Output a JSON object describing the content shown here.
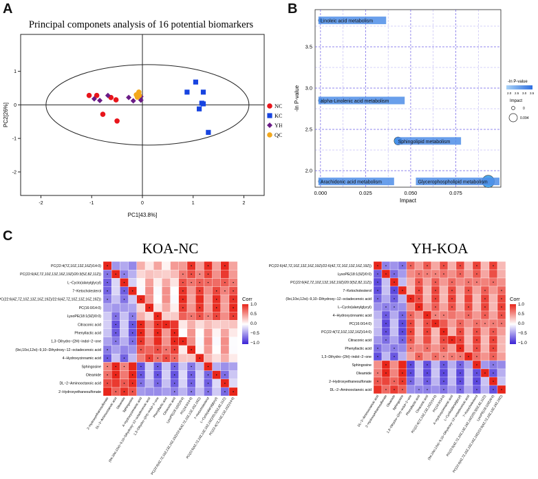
{
  "panels": {
    "a": "A",
    "b": "B",
    "c": "C"
  },
  "colors": {
    "nc": "#e8151b",
    "koa": "#1744e0",
    "yh": "#6a1b86",
    "qc": "#f3a81c",
    "pathway_box": "#4f8ee8",
    "grid": "#6b5ce6",
    "heat_pos": "#e8261b",
    "heat_neg": "#3a22d6"
  },
  "pca": {
    "title": "Principal componets analysis of 16 potential biomarkers",
    "xlabel": "PC1[43.8%]",
    "ylabel": "PC2[26%]",
    "legend": [
      {
        "key": "nc",
        "label": "NC",
        "shape": "circle"
      },
      {
        "key": "koa",
        "label": "KOA",
        "shape": "square"
      },
      {
        "key": "yh",
        "label": "YH",
        "shape": "diamond"
      },
      {
        "key": "qc",
        "label": "QC",
        "shape": "circle"
      }
    ]
  },
  "chart_data": [
    {
      "type": "scatter",
      "title": "Principal componets analysis of 16 potential biomarkers",
      "xlabel": "PC1[43.8%]",
      "ylabel": "PC2[26%]",
      "xlim": [
        -2.4,
        2.4
      ],
      "ylim": [
        -2.7,
        2.1
      ],
      "xticks": [
        -2,
        -1,
        0,
        1,
        2
      ],
      "yticks": [
        -2,
        -1,
        0,
        1
      ],
      "series": [
        {
          "name": "NC",
          "points": [
            [
              -1.05,
              0.28
            ],
            [
              -0.9,
              0.28
            ],
            [
              -0.78,
              -0.28
            ],
            [
              -0.62,
              0.22
            ],
            [
              -0.52,
              0.15
            ],
            [
              -0.5,
              -0.48
            ]
          ]
        },
        {
          "name": "KOA",
          "points": [
            [
              0.88,
              0.38
            ],
            [
              1.05,
              0.68
            ],
            [
              1.12,
              -0.12
            ],
            [
              1.17,
              0.05
            ],
            [
              1.2,
              0.38
            ],
            [
              1.2,
              0.03
            ],
            [
              1.3,
              -0.82
            ]
          ]
        },
        {
          "name": "YH",
          "points": [
            [
              -0.95,
              0.18
            ],
            [
              -0.84,
              0.13
            ],
            [
              -0.68,
              0.28
            ],
            [
              -0.27,
              0.22
            ],
            [
              -0.18,
              0.12
            ],
            [
              -0.03,
              0.25
            ],
            [
              -0.03,
              0.14
            ]
          ]
        },
        {
          "name": "QC",
          "points": [
            [
              -0.12,
              0.3
            ],
            [
              -0.1,
              0.23
            ],
            [
              -0.07,
              0.38
            ],
            [
              -0.06,
              0.28
            ]
          ]
        }
      ]
    },
    {
      "type": "scatter",
      "title": "Pathway analysis",
      "xlabel": "Impact",
      "ylabel": "-ln P-value",
      "xlim": [
        -0.003,
        0.1
      ],
      "ylim": [
        1.8,
        3.95
      ],
      "xticks": [
        0.0,
        0.025,
        0.05,
        0.075
      ],
      "xtick_labels": [
        "0.000",
        "0.025",
        "0.050",
        "0.075"
      ],
      "yticks": [
        2.0,
        2.5,
        3.0,
        3.5
      ],
      "ytick_labels": [
        "2.0",
        "2.5",
        "3.0",
        "3.5"
      ],
      "points": [
        {
          "label": "Linoleic acid metabolism",
          "impact": 0.0,
          "neglogp": 3.82
        },
        {
          "label": "alpha-Linolenic acid metabolism",
          "impact": 0.0,
          "neglogp": 2.85
        },
        {
          "label": "Sphingolipid metabolism",
          "impact": 0.043,
          "neglogp": 2.36
        },
        {
          "label": "Arachidonic acid metabolism",
          "impact": 0.0,
          "neglogp": 1.87
        },
        {
          "label": "Glycerophospholipid metabolism",
          "impact": 0.093,
          "neglogp": 1.87
        }
      ],
      "legend_color_title": "-ln P-value",
      "legend_color_ticks": [
        "2.0",
        "2.5",
        "3.0",
        "3.5"
      ],
      "legend_size_title": "Impact",
      "legend_size_labels": [
        "0",
        "0.094"
      ]
    },
    {
      "type": "heatmap",
      "title": "KOA-NC",
      "legend_title": "Corr",
      "legend_ticks": [
        "1.0",
        "0.5",
        "0.0",
        "−0.5",
        "−1.0"
      ],
      "rows": [
        "PC(22:4(7Z,10Z,13Z,16Z)/14:0)",
        "PC(22:6(4Z,7Z,10Z,13Z,16Z,19Z)/20:3(5Z,8Z,11Z))",
        "L−Cyclo(alanylglycyl)",
        "7−Ketocholesterol",
        "PC(22:6(4Z,7Z,10Z,13Z,16Z,19Z)/22:6(4Z,7Z,10Z,13Z,16Z,19Z))",
        "PC(16:0/14:0)",
        "LysoPE(18:1(9Z)/0:0)",
        "Citraconic acid",
        "Phenyllactic acid",
        "1,3−Dihydro−(2H)−indol−2−one",
        "(9xi,10xi,12xi)−9,10−Dihydroxy−12−octadecenoic acid",
        "4−Hydroxycinnamic acid",
        "Sphingosine",
        "Oleamide",
        "DL−2−Aminooctanoic acid",
        "2−Hydroxyethanesulfonate"
      ],
      "columns": [
        "2−Hydroxyethanesulfonate",
        "DL−2−Aminooctanoic acid",
        "Oleamide",
        "Sphingosine",
        "4−Hydroxycinnamic acid",
        "(9xi,10xi,12xi)−9,10−Dihydroxy−12−octadecenoic acid",
        "1,3−Dihydro−(2H)−indol−2−one",
        "Phenyllactic acid",
        "Citraconic acid",
        "LysoPE(18:1(9Z)/0:0)",
        "PC(16:0/14:0)",
        "PC(22:6(4Z,7Z,10Z,13Z,16Z,19Z)/22:6(4Z,7Z,10Z,13Z,16Z,19Z))",
        "7−Ketocholesterol",
        "L−Cyclo(alanylglycyl)",
        "PC(22:6(4Z,7Z,10Z,13Z,16Z,19Z)/20:3(5Z,8Z,11Z))",
        "PC(22:4(7Z,10Z,13Z,16Z)/14:0)"
      ],
      "groups": [
        0,
        0,
        0,
        0,
        1,
        1,
        1,
        1,
        1,
        2,
        2,
        2,
        2,
        2,
        2,
        2
      ],
      "group_corr": [
        [
          0.85,
          -0.5,
          -0.45
        ],
        [
          -0.5,
          0.75,
          0.25
        ],
        [
          -0.45,
          0.25,
          0.7
        ]
      ],
      "note": "correlation values estimated from cell colors; '*' marks significant cells"
    },
    {
      "type": "heatmap",
      "title": "YH-KOA",
      "legend_title": "Corr",
      "legend_ticks": [
        "1.0",
        "0.5",
        "0.0",
        "−0.5",
        "−1.0"
      ],
      "rows": [
        "PC(22:6(4Z,7Z,10Z,13Z,16Z,19Z)/22:6(4Z,7Z,10Z,13Z,16Z,19Z))",
        "LysoPE(18:1(9Z)/0:0)",
        "PC(22:6(4Z,7Z,10Z,13Z,16Z,19Z)/20:3(5Z,8Z,11Z))",
        "7−Ketocholesterol",
        "(9xi,10xi,12xi)−9,10−Dihydroxy−12−octadecenoic acid",
        "L−Cyclo(alanylglycyl)",
        "4−Hydroxycinnamic acid",
        "PC(16:0/14:0)",
        "PC(22:4(7Z,10Z,13Z,16Z)/14:0)",
        "Citraconic acid",
        "Phenyllactic acid",
        "1,3−Dihydro−(2H)−indol−2−one",
        "Sphingosine",
        "Oleamide",
        "2−Hydroxyethanesulfonate",
        "DL−2−Aminooctanoic acid"
      ],
      "columns": [
        "DL−2−Aminooctanoic acid",
        "2−Hydroxyethanesulfonate",
        "Oleamide",
        "Sphingosine",
        "1,3−Dihydro−(2H)−indol−2−one",
        "Phenyllactic acid",
        "Citraconic acid",
        "PC(22:4(7Z,10Z,13Z,16Z)/14:0)",
        "PC(16:0/14:0)",
        "4−Hydroxycinnamic acid",
        "L−Cyclo(alanylglycyl)",
        "(9xi,10xi,12xi)−9,10−Dihydroxy−12−octadecenoic acid",
        "7−Ketocholesterol",
        "PC(22:6(4Z,7Z,10Z,13Z,16Z,19Z)/20:3(5Z,8Z,11Z))",
        "LysoPE(18:1(9Z)/0:0)",
        "PC(22:6(4Z,7Z,10Z,13Z,16Z,19Z)/22:6(4Z,7Z,10Z,13Z,16Z,19Z))"
      ],
      "groups": [
        0,
        0,
        0,
        0,
        1,
        1,
        1,
        1,
        1,
        1,
        1,
        1,
        1,
        1,
        1,
        1
      ],
      "group_corr": [
        [
          0.8,
          -0.55
        ],
        [
          -0.55,
          0.6
        ]
      ],
      "note": "correlation values estimated from cell colors; '*' marks significant cells"
    }
  ]
}
